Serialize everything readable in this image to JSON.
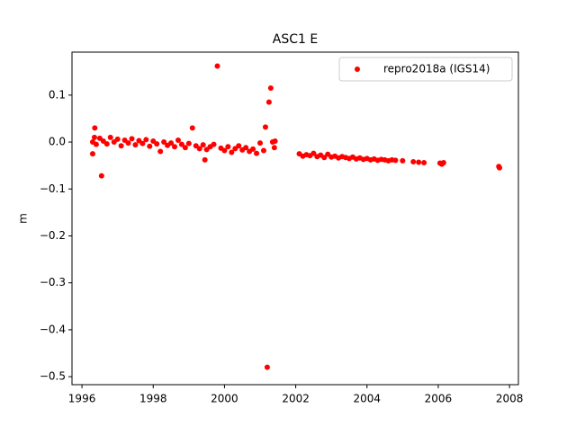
{
  "chart_data": {
    "type": "scatter",
    "title": "ASC1 E",
    "ylabel": "m",
    "xlim": [
      1995.72,
      2008.25
    ],
    "xticks": [
      1996,
      1998,
      2000,
      2002,
      2004,
      2006,
      2008
    ],
    "ylim": [
      -0.517,
      0.1916
    ],
    "yticks": [
      0.1,
      {
        "value": 0,
        "label": "0.0"
      },
      {
        "value": -0.1,
        "label": "−0.1"
      },
      {
        "value": -0.2,
        "label": "−0.2"
      },
      {
        "value": -0.3,
        "label": "−0.3"
      },
      {
        "value": -0.4,
        "label": "−0.4"
      },
      {
        "value": -0.5,
        "label": "−0.5"
      }
    ],
    "legend": "upper right",
    "series": [
      {
        "name": "repro2018a (IGS14)",
        "color": "#ff0000",
        "x": [
          1996.3,
          1996.35,
          1996.4,
          1996.5,
          1996.6,
          1996.7,
          1996.8,
          1996.9,
          1997.0,
          1997.1,
          1997.2,
          1997.3,
          1997.4,
          1997.5,
          1997.6,
          1997.7,
          1997.8,
          1997.9,
          1998.0,
          1998.1,
          1998.2,
          1998.3,
          1998.4,
          1998.5,
          1998.6,
          1998.7,
          1998.8,
          1998.9,
          1999.0,
          1999.2,
          1999.3,
          1999.4,
          1999.5,
          1999.6,
          1999.7,
          1999.9,
          2000.0,
          2000.1,
          2000.2,
          2000.3,
          2000.4,
          2000.5,
          2000.6,
          2000.7,
          2000.8,
          2000.9,
          2001.0,
          2001.1,
          2001.4,
          2001.42,
          1996.36,
          1996.3,
          1996.55,
          1999.1,
          1999.8,
          2001.2,
          2001.15,
          2001.25,
          2001.3,
          1999.45,
          2001.35,
          2002.1,
          2002.2,
          2002.3,
          2002.4,
          2002.5,
          2002.6,
          2002.7,
          2002.8,
          2002.9,
          2003.0,
          2003.1,
          2003.2,
          2003.3,
          2003.4,
          2003.5,
          2003.6,
          2003.7,
          2003.8,
          2003.9,
          2004.0,
          2004.1,
          2004.2,
          2004.3,
          2004.4,
          2004.5,
          2004.6,
          2004.7,
          2004.8,
          2005.0,
          2005.3,
          2005.45,
          2005.6,
          2006.05,
          2006.1,
          2006.15,
          2007.7,
          2007.72
        ],
        "values": [
          0.0,
          0.01,
          -0.005,
          0.008,
          0.002,
          -0.004,
          0.01,
          0.0,
          0.006,
          -0.008,
          0.004,
          -0.002,
          0.007,
          -0.006,
          0.003,
          -0.003,
          0.005,
          -0.009,
          0.002,
          -0.004,
          -0.02,
          0.0,
          -0.007,
          -0.002,
          -0.01,
          0.004,
          -0.005,
          -0.012,
          -0.003,
          -0.008,
          -0.014,
          -0.006,
          -0.016,
          -0.01,
          -0.005,
          -0.013,
          -0.018,
          -0.01,
          -0.022,
          -0.014,
          -0.008,
          -0.017,
          -0.012,
          -0.02,
          -0.015,
          -0.024,
          -0.002,
          -0.018,
          -0.012,
          0.002,
          0.03,
          -0.025,
          -0.072,
          0.03,
          0.162,
          -0.48,
          0.032,
          0.085,
          0.115,
          -0.038,
          0.0,
          -0.025,
          -0.03,
          -0.027,
          -0.029,
          -0.024,
          -0.031,
          -0.028,
          -0.033,
          -0.026,
          -0.032,
          -0.03,
          -0.034,
          -0.031,
          -0.033,
          -0.035,
          -0.032,
          -0.036,
          -0.034,
          -0.037,
          -0.035,
          -0.038,
          -0.036,
          -0.039,
          -0.037,
          -0.038,
          -0.04,
          -0.038,
          -0.039,
          -0.04,
          -0.042,
          -0.043,
          -0.044,
          -0.045,
          -0.047,
          -0.044,
          -0.052,
          -0.055
        ]
      }
    ]
  }
}
